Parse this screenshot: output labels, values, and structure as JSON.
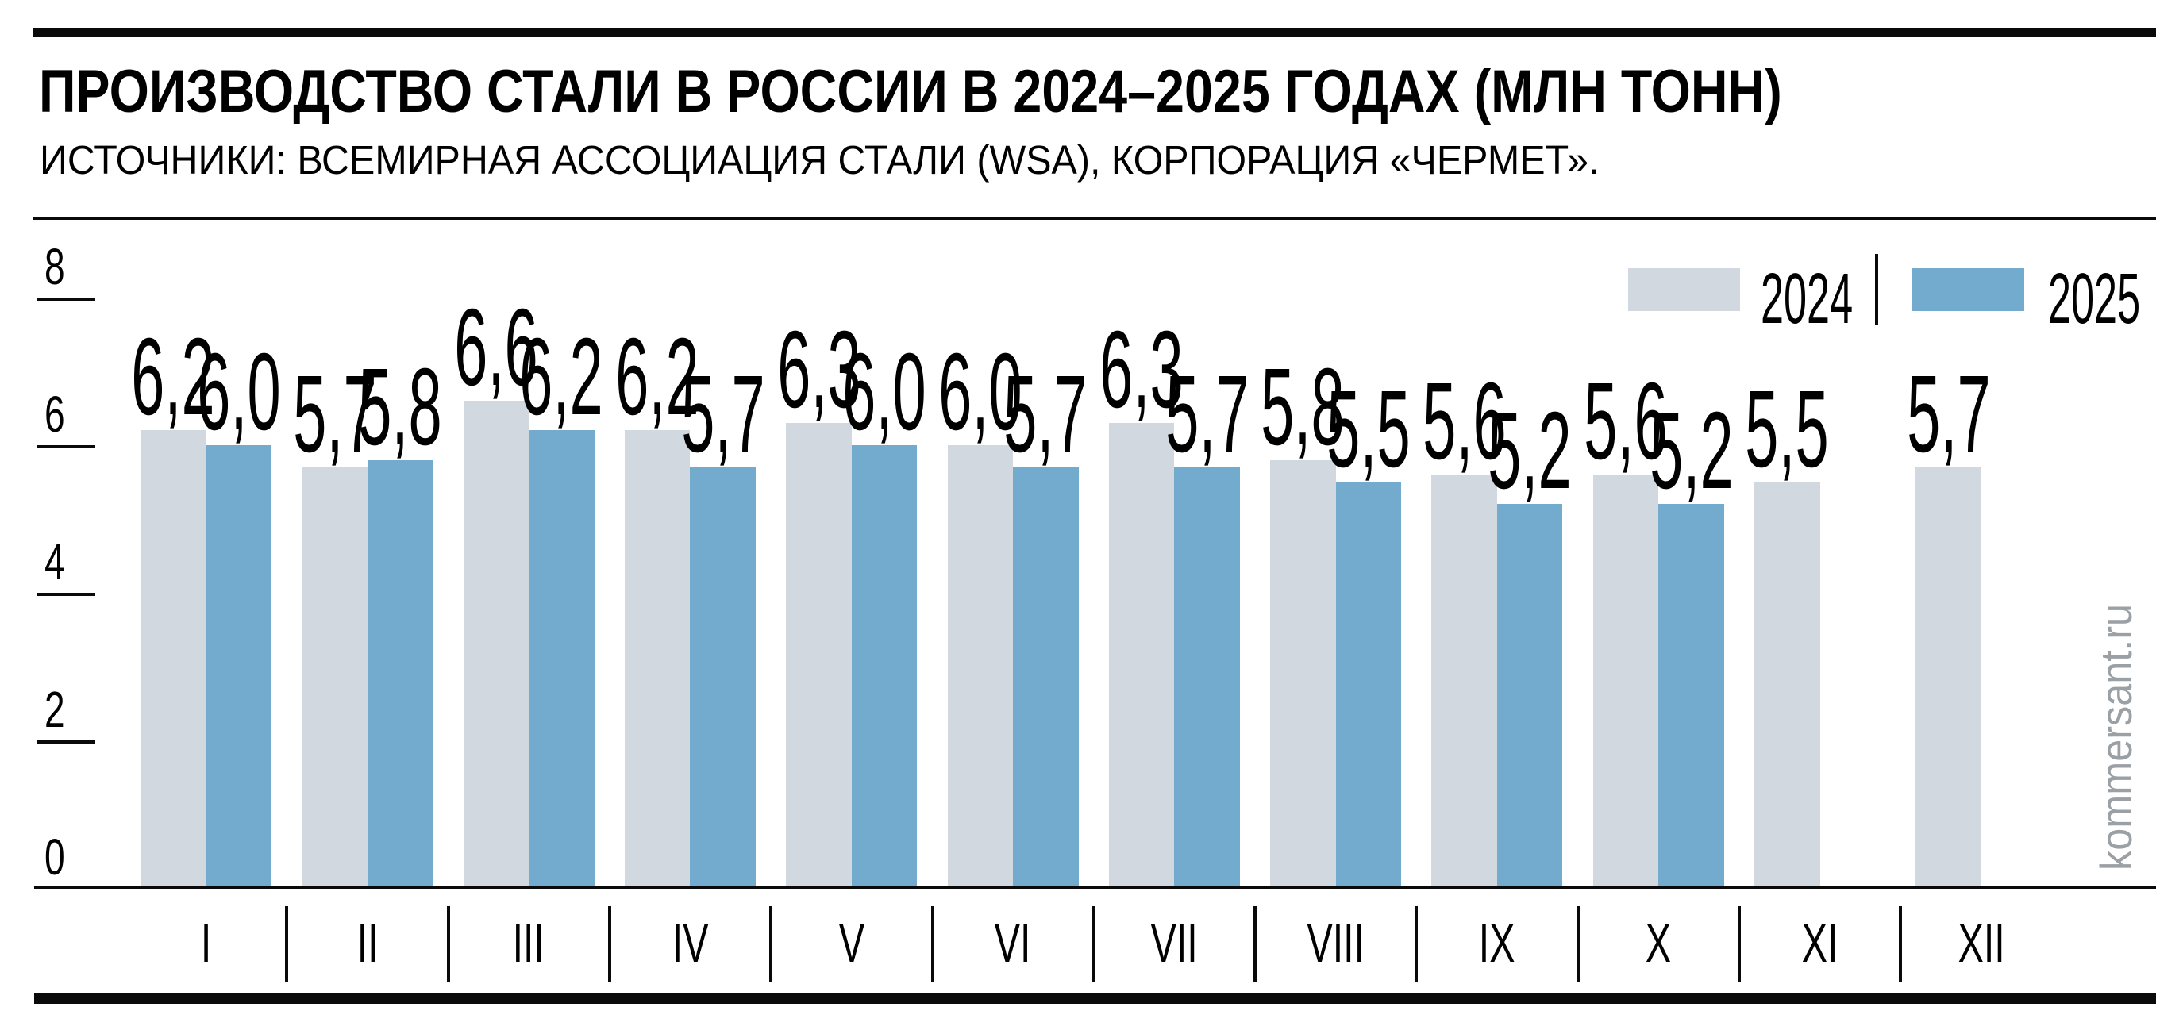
{
  "header": {
    "title": "ПРОИЗВОДСТВО СТАЛИ В РОССИИ В 2024–2025 ГОДАХ (МЛН ТОНН)",
    "source": "ИСТОЧНИКИ: ВСЕМИРНАЯ АССОЦИАЦИЯ СТАЛИ (WSA), КОРПОРАЦИЯ «ЧЕРМЕТ»."
  },
  "legend": {
    "items": [
      {
        "label": "2024",
        "color": "#d1d8df"
      },
      {
        "label": "2025",
        "color": "#73abce"
      }
    ],
    "position": "top-right"
  },
  "watermark": "kommersant.ru",
  "colors": {
    "series_2024": "#d1d8df",
    "series_2025": "#73abce",
    "text": "#0a0a0a",
    "watermark": "#9ba0a5"
  },
  "chart_data": {
    "type": "bar",
    "title": "ПРОИЗВОДСТВО СТАЛИ В РОССИИ В 2024–2025 ГОДАХ (МЛН ТОНН)",
    "unit": "млн тонн",
    "categories": [
      "I",
      "II",
      "III",
      "IV",
      "V",
      "VI",
      "VII",
      "VIII",
      "IX",
      "X",
      "XI",
      "XII"
    ],
    "series": [
      {
        "name": "2024",
        "color": "#d1d8df",
        "values": [
          6.2,
          5.7,
          6.6,
          6.2,
          6.3,
          6.0,
          6.3,
          5.8,
          5.6,
          5.6,
          5.5,
          5.7
        ],
        "labels": [
          "6,2",
          "5,7",
          "6,6",
          "6,2",
          "6,3",
          "6,0",
          "6,3",
          "5,8",
          "5,6",
          "5,6",
          "5,5",
          "5,7"
        ]
      },
      {
        "name": "2025",
        "color": "#73abce",
        "values": [
          6.0,
          5.8,
          6.2,
          5.7,
          6.0,
          5.7,
          5.7,
          5.5,
          5.2,
          5.2,
          null,
          null
        ],
        "labels": [
          "6,0",
          "5,8",
          "6,2",
          "5,7",
          "6,0",
          "5,7",
          "5,7",
          "5,5",
          "5,2",
          "5,2",
          null,
          null
        ]
      }
    ],
    "y_axis": {
      "ticks": [
        0,
        2,
        4,
        6,
        8
      ],
      "range": [
        0,
        8
      ],
      "tick_labels": [
        "0",
        "2",
        "4",
        "6",
        "8"
      ]
    },
    "grid": false,
    "value_labels_shown": true,
    "legend_position": "top-right"
  }
}
